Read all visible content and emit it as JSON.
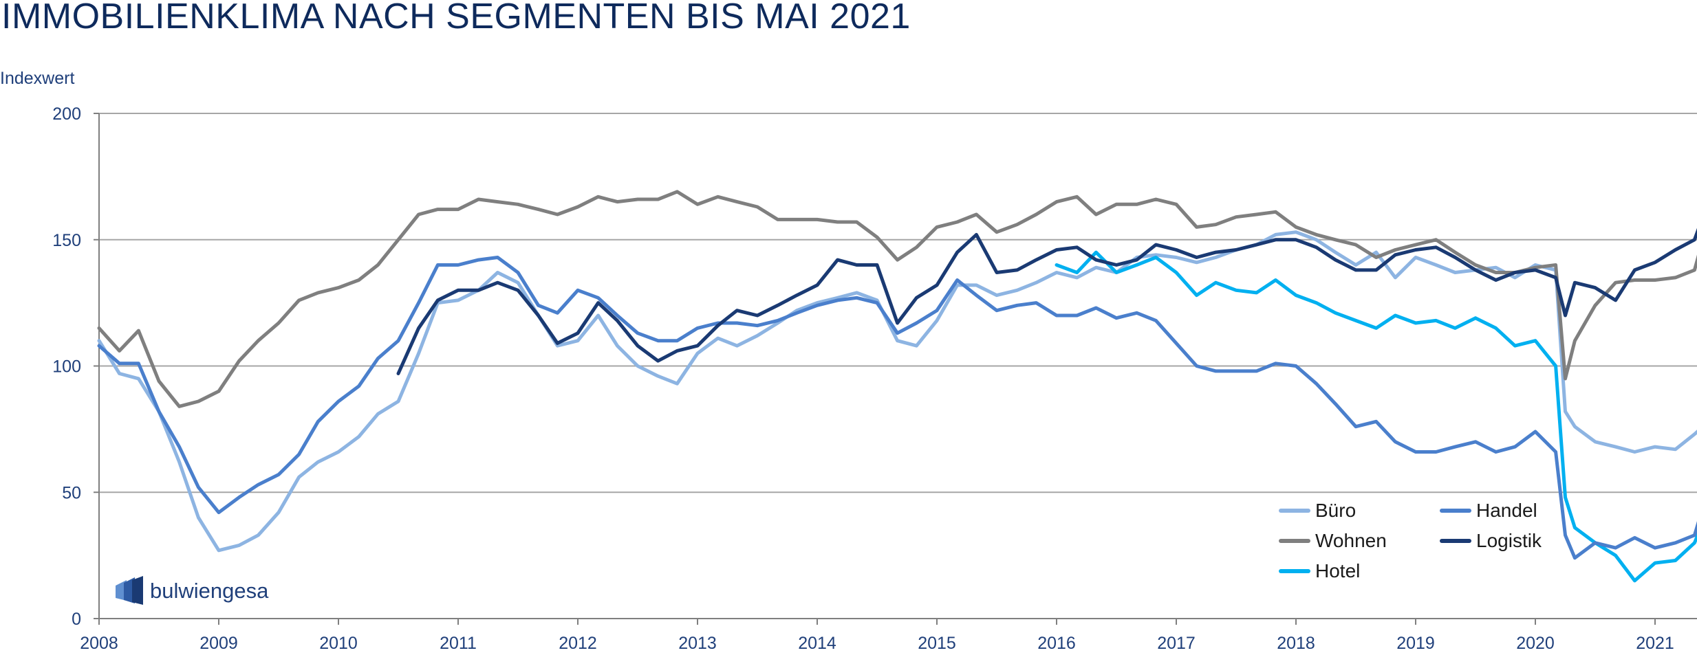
{
  "chart_data": {
    "type": "line",
    "title": "IMMOBILIENKLIMA NACH SEGMENTEN BIS MAI 2021",
    "ylabel": "Indexwert",
    "xlabel": "",
    "ylim": [
      0,
      200
    ],
    "xlim": [
      2008,
      2021.4
    ],
    "yticks": [
      0,
      50,
      100,
      150,
      200
    ],
    "xticks": [
      2008,
      2009,
      2010,
      2011,
      2012,
      2013,
      2014,
      2015,
      2016,
      2017,
      2018,
      2019,
      2020,
      2021
    ],
    "grid": "horizontal",
    "legend_position": "bottom-right",
    "series": [
      {
        "name": "Büro",
        "color": "#8db4e2",
        "x": [
          2008,
          2008.17,
          2008.33,
          2008.5,
          2008.67,
          2008.83,
          2009,
          2009.17,
          2009.33,
          2009.5,
          2009.67,
          2009.83,
          2010,
          2010.17,
          2010.33,
          2010.5,
          2010.67,
          2010.83,
          2011,
          2011.17,
          2011.33,
          2011.5,
          2011.67,
          2011.83,
          2012,
          2012.17,
          2012.33,
          2012.5,
          2012.67,
          2012.83,
          2013,
          2013.17,
          2013.33,
          2013.5,
          2013.67,
          2013.83,
          2014,
          2014.17,
          2014.33,
          2014.5,
          2014.67,
          2014.83,
          2015,
          2015.17,
          2015.33,
          2015.5,
          2015.67,
          2015.83,
          2016,
          2016.17,
          2016.33,
          2016.5,
          2016.67,
          2016.83,
          2017,
          2017.17,
          2017.33,
          2017.5,
          2017.67,
          2017.83,
          2018,
          2018.17,
          2018.33,
          2018.5,
          2018.67,
          2018.83,
          2019,
          2019.17,
          2019.33,
          2019.5,
          2019.67,
          2019.83,
          2020,
          2020.17,
          2020.25,
          2020.33,
          2020.5,
          2020.67,
          2020.83,
          2021,
          2021.17,
          2021.33,
          2021.4
        ],
        "values": [
          110,
          97,
          95,
          82,
          62,
          40,
          27,
          29,
          33,
          42,
          56,
          62,
          66,
          72,
          81,
          86,
          105,
          125,
          126,
          130,
          137,
          133,
          120,
          108,
          110,
          120,
          108,
          100,
          96,
          93,
          105,
          111,
          108,
          112,
          117,
          122,
          125,
          127,
          129,
          126,
          110,
          108,
          118,
          132,
          132,
          128,
          130,
          133,
          137,
          135,
          139,
          137,
          143,
          144,
          143,
          141,
          143,
          146,
          148,
          152,
          153,
          150,
          145,
          140,
          145,
          135,
          143,
          140,
          137,
          138,
          139,
          135,
          140,
          138,
          82,
          76,
          70,
          68,
          66,
          68,
          67,
          73,
          76
        ]
      },
      {
        "name": "Wohnen",
        "color": "#7f7f7f",
        "x": [
          2008,
          2008.17,
          2008.33,
          2008.5,
          2008.67,
          2008.83,
          2009,
          2009.17,
          2009.33,
          2009.5,
          2009.67,
          2009.83,
          2010,
          2010.17,
          2010.33,
          2010.5,
          2010.67,
          2010.83,
          2011,
          2011.17,
          2011.33,
          2011.5,
          2011.67,
          2011.83,
          2012,
          2012.17,
          2012.33,
          2012.5,
          2012.67,
          2012.83,
          2013,
          2013.17,
          2013.33,
          2013.5,
          2013.67,
          2013.83,
          2014,
          2014.17,
          2014.33,
          2014.5,
          2014.67,
          2014.83,
          2015,
          2015.17,
          2015.33,
          2015.5,
          2015.67,
          2015.83,
          2016,
          2016.17,
          2016.33,
          2016.5,
          2016.67,
          2016.83,
          2017,
          2017.17,
          2017.33,
          2017.5,
          2017.67,
          2017.83,
          2018,
          2018.17,
          2018.33,
          2018.5,
          2018.67,
          2018.83,
          2019,
          2019.17,
          2019.33,
          2019.5,
          2019.67,
          2019.83,
          2020,
          2020.17,
          2020.25,
          2020.33,
          2020.5,
          2020.67,
          2020.83,
          2021,
          2021.17,
          2021.33,
          2021.4
        ],
        "values": [
          115,
          106,
          114,
          94,
          84,
          86,
          90,
          102,
          110,
          117,
          126,
          129,
          131,
          134,
          140,
          150,
          160,
          162,
          162,
          166,
          165,
          164,
          162,
          160,
          163,
          167,
          165,
          166,
          166,
          169,
          164,
          167,
          165,
          163,
          158,
          158,
          158,
          157,
          157,
          151,
          142,
          147,
          155,
          157,
          160,
          153,
          156,
          160,
          165,
          167,
          160,
          164,
          164,
          166,
          164,
          155,
          156,
          159,
          160,
          161,
          155,
          152,
          150,
          148,
          143,
          146,
          148,
          150,
          145,
          140,
          137,
          137,
          139,
          140,
          95,
          110,
          124,
          133,
          134,
          134,
          135,
          138,
          150
        ]
      },
      {
        "name": "Hotel",
        "color": "#00b0f0",
        "x": [
          2016,
          2016.17,
          2016.33,
          2016.5,
          2016.67,
          2016.83,
          2017,
          2017.17,
          2017.33,
          2017.5,
          2017.67,
          2017.83,
          2018,
          2018.17,
          2018.33,
          2018.5,
          2018.67,
          2018.83,
          2019,
          2019.17,
          2019.33,
          2019.5,
          2019.67,
          2019.83,
          2020,
          2020.17,
          2020.25,
          2020.33,
          2020.5,
          2020.67,
          2020.83,
          2021,
          2021.17,
          2021.33,
          2021.4
        ],
        "values": [
          140,
          137,
          145,
          137,
          140,
          143,
          137,
          128,
          133,
          130,
          129,
          134,
          128,
          125,
          121,
          118,
          115,
          120,
          117,
          118,
          115,
          119,
          115,
          108,
          110,
          100,
          48,
          36,
          30,
          25,
          15,
          22,
          23,
          30,
          38
        ]
      },
      {
        "name": "Handel",
        "color": "#4a7fcc",
        "x": [
          2008,
          2008.17,
          2008.33,
          2008.5,
          2008.67,
          2008.83,
          2009,
          2009.17,
          2009.33,
          2009.5,
          2009.67,
          2009.83,
          2010,
          2010.17,
          2010.33,
          2010.5,
          2010.67,
          2010.83,
          2011,
          2011.17,
          2011.33,
          2011.5,
          2011.67,
          2011.83,
          2012,
          2012.17,
          2012.33,
          2012.5,
          2012.67,
          2012.83,
          2013,
          2013.17,
          2013.33,
          2013.5,
          2013.67,
          2013.83,
          2014,
          2014.17,
          2014.33,
          2014.5,
          2014.67,
          2014.83,
          2015,
          2015.17,
          2015.33,
          2015.5,
          2015.67,
          2015.83,
          2016,
          2016.17,
          2016.33,
          2016.5,
          2016.67,
          2016.83,
          2017,
          2017.17,
          2017.33,
          2017.5,
          2017.67,
          2017.83,
          2018,
          2018.17,
          2018.33,
          2018.5,
          2018.67,
          2018.83,
          2019,
          2019.17,
          2019.33,
          2019.5,
          2019.67,
          2019.83,
          2020,
          2020.17,
          2020.25,
          2020.33,
          2020.5,
          2020.67,
          2020.83,
          2021,
          2021.17,
          2021.33,
          2021.4
        ],
        "values": [
          108,
          101,
          101,
          82,
          68,
          52,
          42,
          48,
          53,
          57,
          65,
          78,
          86,
          92,
          103,
          110,
          125,
          140,
          140,
          142,
          143,
          137,
          124,
          121,
          130,
          127,
          120,
          113,
          110,
          110,
          115,
          117,
          117,
          116,
          118,
          121,
          124,
          126,
          127,
          125,
          113,
          117,
          122,
          134,
          128,
          122,
          124,
          125,
          120,
          120,
          123,
          119,
          121,
          118,
          109,
          100,
          98,
          98,
          98,
          101,
          100,
          93,
          85,
          76,
          78,
          70,
          66,
          66,
          68,
          70,
          66,
          68,
          74,
          66,
          33,
          24,
          30,
          28,
          32,
          28,
          30,
          33,
          44
        ]
      },
      {
        "name": "Logistik",
        "color": "#1a3a73",
        "x": [
          2010.5,
          2010.67,
          2010.83,
          2011,
          2011.17,
          2011.33,
          2011.5,
          2011.67,
          2011.83,
          2012,
          2012.17,
          2012.33,
          2012.5,
          2012.67,
          2012.83,
          2013,
          2013.17,
          2013.33,
          2013.5,
          2013.67,
          2013.83,
          2014,
          2014.17,
          2014.33,
          2014.5,
          2014.67,
          2014.83,
          2015,
          2015.17,
          2015.33,
          2015.5,
          2015.67,
          2015.83,
          2016,
          2016.17,
          2016.33,
          2016.5,
          2016.67,
          2016.83,
          2017,
          2017.17,
          2017.33,
          2017.5,
          2017.67,
          2017.83,
          2018,
          2018.17,
          2018.33,
          2018.5,
          2018.67,
          2018.83,
          2019,
          2019.17,
          2019.33,
          2019.5,
          2019.67,
          2019.83,
          2020,
          2020.17,
          2020.25,
          2020.33,
          2020.5,
          2020.67,
          2020.83,
          2021,
          2021.17,
          2021.33,
          2021.4
        ],
        "values": [
          97,
          115,
          126,
          130,
          130,
          133,
          130,
          120,
          109,
          113,
          125,
          118,
          108,
          102,
          106,
          108,
          116,
          122,
          120,
          124,
          128,
          132,
          142,
          140,
          140,
          117,
          127,
          132,
          145,
          152,
          137,
          138,
          142,
          146,
          147,
          142,
          140,
          142,
          148,
          146,
          143,
          145,
          146,
          148,
          150,
          150,
          147,
          142,
          138,
          138,
          144,
          146,
          147,
          143,
          138,
          134,
          137,
          138,
          135,
          120,
          133,
          131,
          126,
          138,
          141,
          146,
          150,
          159
        ]
      }
    ]
  },
  "logo": {
    "text": "bulwiengesa"
  }
}
